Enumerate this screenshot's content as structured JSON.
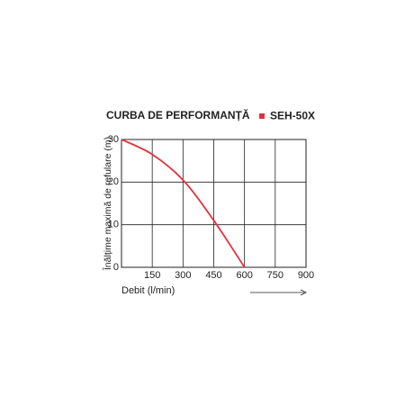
{
  "chart_data": {
    "type": "line",
    "title": "CURBA DE PERFORMANȚĂ",
    "x_label": "Debit (l/min)",
    "y_label": "Înălțime maximă de refulare (m)",
    "x": [
      0,
      150,
      300,
      450,
      600
    ],
    "series": [
      {
        "name": "SEH-50X",
        "color": "#e3313d",
        "values": [
          30,
          26.5,
          20.5,
          11,
          0
        ]
      }
    ],
    "xlim": [
      0,
      900
    ],
    "xticks": [
      150,
      300,
      450,
      600,
      750,
      900
    ],
    "ylim": [
      0,
      30
    ],
    "yticks": [
      0,
      10,
      20,
      30
    ],
    "grid": true,
    "legend": "top-right"
  }
}
